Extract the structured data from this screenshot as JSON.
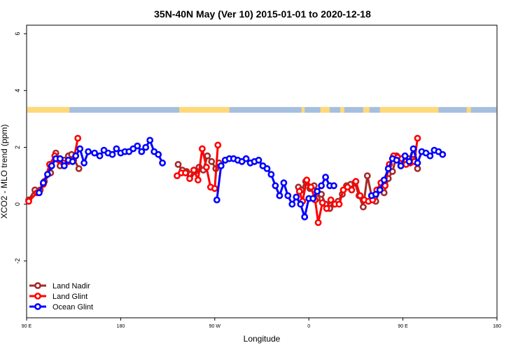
{
  "chart_data": {
    "type": "line",
    "title": "35N-40N May (Ver 10)   2015-01-01 to 2020-12-18",
    "xlabel": "Longitude",
    "ylabel": "XCO2 - MLO trend (ppm)",
    "xlim": [
      90,
      450
    ],
    "ylim": [
      -4,
      6.3
    ],
    "x_ticks": [
      {
        "value": 90,
        "label": "90 E"
      },
      {
        "value": 180,
        "label": "180"
      },
      {
        "value": 270,
        "label": "90 W"
      },
      {
        "value": 360,
        "label": "0"
      },
      {
        "value": 450,
        "label": "90 E"
      },
      {
        "value": 540,
        "label": "180"
      }
    ],
    "y_ticks": [
      {
        "value": -2,
        "label": "-2"
      },
      {
        "value": 0,
        "label": "0"
      },
      {
        "value": 2,
        "label": "2"
      },
      {
        "value": 4,
        "label": "4"
      },
      {
        "value": 6,
        "label": "6"
      }
    ],
    "x_range": [
      90,
      540
    ],
    "land_mask": {
      "y_range": [
        3.22,
        3.42
      ],
      "land_color": "#ffd978",
      "ocean_color": "#a6bfdf",
      "land_ranges": [
        [
          90,
          131
        ],
        [
          236,
          284
        ],
        [
          353,
          356
        ],
        [
          371,
          380
        ],
        [
          390,
          394
        ],
        [
          412,
          418
        ],
        [
          428,
          484
        ],
        [
          511,
          515
        ]
      ]
    },
    "legend_position": "bottom-left",
    "series": [
      {
        "name": "Land Nadir",
        "color": "#a52a2a",
        "segments": [
          [
            [
              92,
              0.15
            ],
            [
              98,
              0.5
            ],
            [
              103,
              0.5
            ],
            [
              107,
              0.8
            ],
            [
              113,
              1.1
            ],
            [
              118,
              1.8
            ],
            [
              122,
              1.35
            ],
            [
              126,
              1.55
            ],
            [
              130,
              1.7
            ],
            [
              133,
              1.75
            ],
            [
              140,
              1.25
            ]
          ],
          [
            [
              235,
              1.4
            ],
            [
              239,
              1.2
            ],
            [
              243,
              1.15
            ],
            [
              247,
              1.05
            ],
            [
              251,
              1.15
            ],
            [
              255,
              1.3
            ],
            [
              259,
              1.2
            ],
            [
              263,
              1.7
            ],
            [
              267,
              1.5
            ],
            [
              271,
              1.25
            ],
            [
              274,
              1.45
            ]
          ],
          [
            [
              350,
              0.6
            ],
            [
              353,
              0.5
            ],
            [
              357,
              0.8
            ],
            [
              361,
              0.55
            ],
            [
              365,
              0.65
            ],
            [
              368,
              0.2
            ],
            [
              372,
              0.35
            ],
            [
              376,
              0.0
            ],
            [
              380,
              -0.15
            ],
            [
              384,
              0.0
            ],
            [
              388,
              0.1
            ],
            [
              392,
              0.35
            ],
            [
              396,
              0.65
            ],
            [
              400,
              0.7
            ],
            [
              404,
              0.75
            ],
            [
              408,
              0.3
            ],
            [
              412,
              -0.1
            ],
            [
              416,
              1.0
            ],
            [
              420,
              0.3
            ],
            [
              424,
              0.1
            ],
            [
              428,
              0.5
            ],
            [
              432,
              0.4
            ],
            [
              436,
              0.9
            ],
            [
              440,
              1.15
            ],
            [
              444,
              1.7
            ],
            [
              448,
              1.35
            ],
            [
              452,
              1.5
            ],
            [
              456,
              1.6
            ],
            [
              460,
              1.75
            ],
            [
              464,
              1.25
            ]
          ]
        ]
      },
      {
        "name": "Land Glint",
        "color": "#ff0000",
        "segments": [
          [
            [
              92,
              0.1
            ],
            [
              100,
              0.4
            ],
            [
              106,
              0.7
            ],
            [
              112,
              1.4
            ],
            [
              117,
              1.7
            ],
            [
              121,
              1.55
            ],
            [
              125,
              1.45
            ],
            [
              130,
              1.5
            ],
            [
              135,
              1.55
            ],
            [
              139,
              2.32
            ]
          ],
          [
            [
              234,
              1.0
            ],
            [
              238,
              1.1
            ],
            [
              242,
              1.1
            ],
            [
              246,
              0.9
            ],
            [
              250,
              1.2
            ],
            [
              254,
              0.85
            ],
            [
              258,
              1.95
            ],
            [
              262,
              1.3
            ],
            [
              266,
              0.6
            ],
            [
              270,
              0.55
            ],
            [
              273,
              2.08
            ]
          ],
          [
            [
              351,
              0.45
            ],
            [
              354,
              0.1
            ],
            [
              358,
              0.85
            ],
            [
              362,
              0.6
            ],
            [
              366,
              0.15
            ],
            [
              369,
              -0.65
            ],
            [
              373,
              0.05
            ],
            [
              377,
              -0.15
            ],
            [
              381,
              0.15
            ],
            [
              385,
              0.0
            ],
            [
              389,
              0.0
            ],
            [
              393,
              0.5
            ],
            [
              397,
              0.6
            ],
            [
              401,
              0.5
            ],
            [
              405,
              0.8
            ],
            [
              409,
              0.3
            ],
            [
              413,
              0.15
            ],
            [
              417,
              0.1
            ],
            [
              421,
              0.15
            ],
            [
              425,
              0.5
            ],
            [
              429,
              0.75
            ],
            [
              433,
              0.65
            ],
            [
              437,
              1.4
            ],
            [
              441,
              1.7
            ],
            [
              445,
              1.65
            ],
            [
              449,
              1.6
            ],
            [
              453,
              1.4
            ],
            [
              457,
              1.45
            ],
            [
              461,
              1.5
            ],
            [
              464,
              2.32
            ]
          ]
        ]
      },
      {
        "name": "Ocean Glint",
        "color": "#0000ff",
        "segments": [
          [
            [
              102,
              0.4
            ],
            [
              106,
              0.75
            ],
            [
              110,
              1.05
            ],
            [
              114,
              1.35
            ],
            [
              118,
              1.6
            ],
            [
              122,
              1.6
            ],
            [
              126,
              1.35
            ],
            [
              130,
              1.55
            ],
            [
              134,
              1.5
            ],
            [
              137,
              1.7
            ],
            [
              141,
              1.95
            ],
            [
              145,
              1.45
            ],
            [
              149,
              1.85
            ],
            [
              155,
              1.8
            ],
            [
              160,
              1.7
            ],
            [
              164,
              1.9
            ],
            [
              168,
              1.8
            ],
            [
              172,
              1.75
            ],
            [
              176,
              1.95
            ],
            [
              180,
              1.8
            ],
            [
              184,
              1.85
            ],
            [
              188,
              1.85
            ],
            [
              192,
              1.95
            ],
            [
              196,
              2.05
            ],
            [
              200,
              1.85
            ],
            [
              204,
              2.0
            ],
            [
              208,
              2.25
            ],
            [
              212,
              1.85
            ],
            [
              216,
              1.75
            ],
            [
              220,
              1.45
            ]
          ],
          [
            [
              272,
              0.15
            ],
            [
              276,
              1.35
            ],
            [
              280,
              1.55
            ],
            [
              284,
              1.6
            ],
            [
              288,
              1.6
            ],
            [
              292,
              1.55
            ],
            [
              296,
              1.5
            ],
            [
              300,
              1.6
            ],
            [
              304,
              1.45
            ],
            [
              308,
              1.5
            ],
            [
              312,
              1.55
            ],
            [
              316,
              1.35
            ],
            [
              320,
              1.25
            ],
            [
              324,
              1.05
            ],
            [
              328,
              0.65
            ],
            [
              332,
              0.3
            ],
            [
              336,
              0.75
            ],
            [
              340,
              0.3
            ],
            [
              344,
              0.0
            ],
            [
              348,
              0.25
            ],
            [
              352,
              0.0
            ],
            [
              356,
              -0.45
            ],
            [
              360,
              0.2
            ],
            [
              364,
              0.2
            ],
            [
              368,
              0.45
            ],
            [
              372,
              0.65
            ],
            [
              376,
              0.95
            ],
            [
              380,
              0.65
            ],
            [
              384,
              0.65
            ]
          ],
          [
            [
              420,
              0.3
            ],
            [
              424,
              0.35
            ],
            [
              428,
              0.5
            ],
            [
              432,
              0.85
            ],
            [
              436,
              1.25
            ],
            [
              440,
              1.6
            ],
            [
              444,
              1.55
            ],
            [
              448,
              1.35
            ],
            [
              452,
              1.7
            ],
            [
              456,
              1.5
            ],
            [
              460,
              1.95
            ],
            [
              464,
              1.45
            ],
            [
              468,
              1.85
            ],
            [
              472,
              1.8
            ],
            [
              476,
              1.7
            ],
            [
              480,
              1.9
            ],
            [
              484,
              1.85
            ],
            [
              488,
              1.75
            ]
          ]
        ]
      }
    ]
  }
}
